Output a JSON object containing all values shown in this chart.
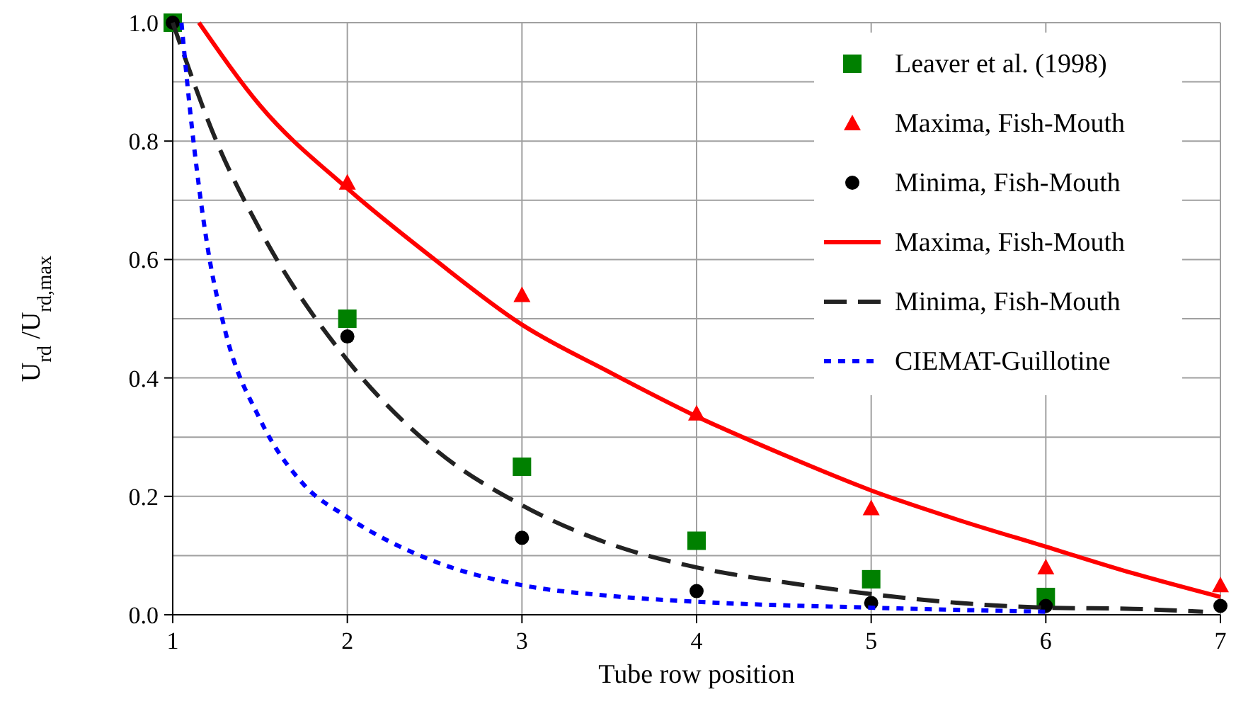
{
  "chart_data": {
    "type": "scatter",
    "xlabel": "Tube row position",
    "ylabel": "U$_{rd}$ /U$_{rd,max}$",
    "xlim": [
      1,
      7
    ],
    "xticks": [
      1,
      2,
      3,
      4,
      5,
      6,
      7
    ],
    "ylim": [
      0,
      1
    ],
    "yticks": [
      {
        "value": 0,
        "label": "0.0"
      },
      {
        "value": 0.1,
        "label": null
      },
      {
        "value": 0.2,
        "label": "0.2"
      },
      {
        "value": 0.3,
        "label": null
      },
      {
        "value": 0.4,
        "label": "0.4"
      },
      {
        "value": 0.5,
        "label": null
      },
      {
        "value": 0.6,
        "label": "0.6"
      },
      {
        "value": 0.7,
        "label": null
      },
      {
        "value": 0.8,
        "label": "0.8"
      },
      {
        "value": 0.9,
        "label": null
      },
      {
        "value": 1,
        "label": "1.0"
      }
    ],
    "grid": true,
    "legend": "top right",
    "series": [
      {
        "name": "Leaver et al. (1998)",
        "marker": "square",
        "color": "#008000",
        "x": [
          1,
          2,
          3,
          4,
          5,
          6
        ],
        "values": [
          1,
          0.5,
          0.25,
          0.125,
          0.06,
          0.03
        ]
      },
      {
        "name": "Maxima, Fish-Mouth",
        "marker": "triangle",
        "color": "#ff0000",
        "x": [
          2,
          3,
          4,
          5,
          6,
          7
        ],
        "values": [
          0.73,
          0.54,
          0.34,
          0.18,
          0.08,
          0.05
        ]
      },
      {
        "name": "Minima, Fish-Mouth",
        "marker": "circle",
        "color": "#000000",
        "x": [
          1,
          2,
          3,
          4,
          5,
          6,
          7
        ],
        "values": [
          1,
          0.47,
          0.13,
          0.04,
          0.02,
          0.015,
          0.015
        ]
      },
      {
        "name": "Maxima, Fish-Mouth",
        "type": "line",
        "line_style": "solid",
        "color": "#ff0000",
        "x": [
          1.15,
          1.5,
          2,
          2.5,
          3,
          3.5,
          4,
          4.5,
          5,
          5.5,
          6,
          6.5,
          7
        ],
        "values": [
          1,
          0.86,
          0.72,
          0.6,
          0.49,
          0.41,
          0.335,
          0.27,
          0.21,
          0.16,
          0.115,
          0.07,
          0.03
        ]
      },
      {
        "name": "Minima, Fish-Mouth",
        "type": "line",
        "line_style": "dashed",
        "color": "#222222",
        "x": [
          1,
          1.25,
          1.5,
          2,
          2.5,
          3,
          3.5,
          4,
          4.5,
          5,
          5.5,
          6,
          6.5,
          6.9
        ],
        "values": [
          1,
          0.8,
          0.65,
          0.43,
          0.28,
          0.185,
          0.12,
          0.08,
          0.055,
          0.035,
          0.02,
          0.012,
          0.01,
          0.005
        ]
      },
      {
        "name": "CIEMAT-Guillotine",
        "type": "line",
        "line_style": "dotted",
        "color": "#0000ff",
        "x": [
          1.05,
          1.1,
          1.2,
          1.3,
          1.5,
          1.75,
          2,
          2.5,
          3,
          3.5,
          4,
          5,
          6
        ],
        "values": [
          1,
          0.85,
          0.62,
          0.48,
          0.33,
          0.22,
          0.165,
          0.09,
          0.05,
          0.032,
          0.022,
          0.012,
          0.005
        ]
      }
    ]
  }
}
